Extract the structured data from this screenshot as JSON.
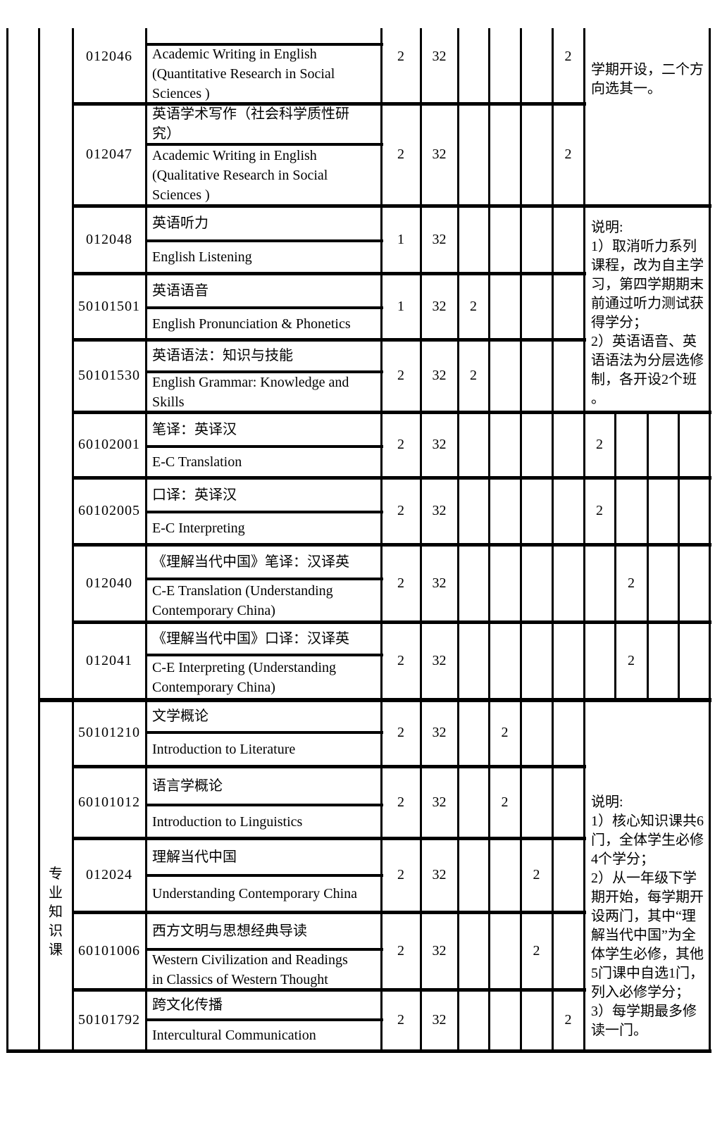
{
  "page": {
    "background": "#ffffff",
    "text_color": "#000000",
    "border_color": "#000000"
  },
  "table": {
    "group_label": "专\n业\n知\n识\n课",
    "rows": [
      {
        "code": "012046",
        "name_cn": "",
        "name_en": "Academic Writing in English\n(Quantitative Research in Social\nSciences )",
        "credits": "2",
        "hours": "32",
        "semester_mark": "2"
      },
      {
        "code": "012047",
        "name_cn": "英语学术写作（社会科学质性研\n究）",
        "name_en": "Academic Writing in English\n(Qualitative Research in Social\nSciences )",
        "credits": "2",
        "hours": "32",
        "semester_mark": "2"
      },
      {
        "code": "012048",
        "name_cn": "英语听力",
        "name_en": "English Listening",
        "credits": "1",
        "hours": "32",
        "semester_mark": ""
      },
      {
        "code": "50101501",
        "name_cn": "英语语音",
        "name_en": "English Pronunciation & Phonetics",
        "credits": "1",
        "hours": "32",
        "semester_mark": "2"
      },
      {
        "code": "50101530",
        "name_cn": "英语语法：知识与技能",
        "name_en": "English Grammar: Knowledge and\nSkills",
        "credits": "2",
        "hours": "32",
        "semester_mark": "2"
      },
      {
        "code": "60102001",
        "name_cn": "笔译：英译汉",
        "name_en": "E-C Translation",
        "credits": "2",
        "hours": "32",
        "semester_mark": "2"
      },
      {
        "code": "60102005",
        "name_cn": "口译：英译汉",
        "name_en": "E-C Interpreting",
        "credits": "2",
        "hours": "32",
        "semester_mark": "2"
      },
      {
        "code": "012040",
        "name_cn": "《理解当代中国》笔译：汉译英",
        "name_en": "C-E Translation (Understanding\nContemporary China)",
        "credits": "2",
        "hours": "32",
        "semester_mark": "2"
      },
      {
        "code": "012041",
        "name_cn": "《理解当代中国》口译：汉译英",
        "name_en": "C-E Interpreting (Understanding\nContemporary China)",
        "credits": "2",
        "hours": "32",
        "semester_mark": "2"
      },
      {
        "code": "50101210",
        "name_cn": "文学概论",
        "name_en": "Introduction to Literature",
        "credits": "2",
        "hours": "32",
        "semester_mark": "2"
      },
      {
        "code": "60101012",
        "name_cn": "语言学概论",
        "name_en": "Introduction to Linguistics",
        "credits": "2",
        "hours": "32",
        "semester_mark": "2"
      },
      {
        "code": "012024",
        "name_cn": "理解当代中国",
        "name_en": "Understanding Contemporary China",
        "credits": "2",
        "hours": "32",
        "semester_mark": "2"
      },
      {
        "code": "60101006",
        "name_cn": "西方文明与思想经典导读",
        "name_en": "Western Civilization and Readings\nin Classics of Western Thought",
        "credits": "2",
        "hours": "32",
        "semester_mark": "2"
      },
      {
        "code": "50101792",
        "name_cn": "跨文化传播",
        "name_en": "Intercultural Communication",
        "credits": "2",
        "hours": "32",
        "semester_mark": "2"
      }
    ],
    "notes": {
      "top_partial": "学期开设，二个方\n向选其一。",
      "listening": "说明:\n1）取消听力系列\n课程，改为自主学\n习，第四学期期末\n前通过听力测试获\n得学分；\n2）英语语音、英\n语语法为分层选修\n制，各开设2个班\n。",
      "knowledge": "说明:\n1）核心知识课共6\n门，全体学生必修\n4个学分；\n2）从一年级下学\n期开始，每学期开\n设两门，其中“理\n解当代中国”为全\n体学生必修，其他\n5门课中自选1门，\n列入必修学分；\n3）每学期最多修\n读一门。"
    }
  }
}
